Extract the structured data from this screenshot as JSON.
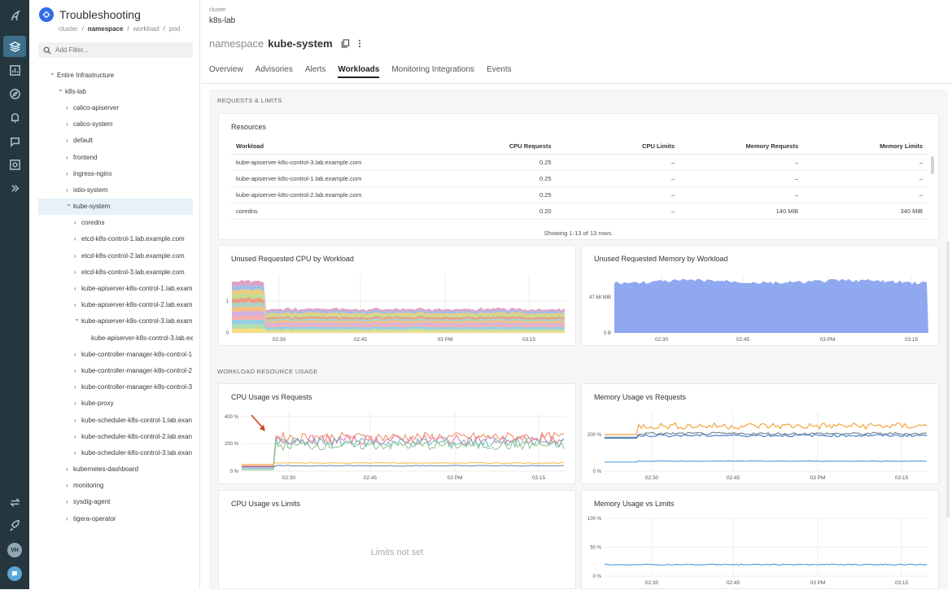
{
  "app": {
    "title": "Troubleshooting"
  },
  "breadcrumb": {
    "cluster": "cluster",
    "namespace": "namespace",
    "workload": "workload",
    "pod": "pod",
    "sep": "/"
  },
  "filter": {
    "placeholder": "Add Filter..."
  },
  "tree": [
    {
      "label": "Entire Infrastructure",
      "level": 0,
      "chevron": "down"
    },
    {
      "label": "k8s-lab",
      "level": 1,
      "chevron": "down"
    },
    {
      "label": "calico-apiserver",
      "level": 2,
      "chevron": "right"
    },
    {
      "label": "calico-system",
      "level": 2,
      "chevron": "right"
    },
    {
      "label": "default",
      "level": 2,
      "chevron": "right"
    },
    {
      "label": "frontend",
      "level": 2,
      "chevron": "right"
    },
    {
      "label": "ingress-nginx",
      "level": 2,
      "chevron": "right"
    },
    {
      "label": "istio-system",
      "level": 2,
      "chevron": "right"
    },
    {
      "label": "kube-system",
      "level": 2,
      "chevron": "down",
      "selected": true
    },
    {
      "label": "coredns",
      "level": 3,
      "chevron": "right"
    },
    {
      "label": "etcd-k8s-control-1.lab.example.com",
      "level": 3,
      "chevron": "right"
    },
    {
      "label": "etcd-k8s-control-2.lab.example.com",
      "level": 3,
      "chevron": "right"
    },
    {
      "label": "etcd-k8s-control-3.lab.example.com",
      "level": 3,
      "chevron": "right"
    },
    {
      "label": "kube-apiserver-k8s-control-1.lab.exam",
      "level": 3,
      "chevron": "right"
    },
    {
      "label": "kube-apiserver-k8s-control-2.lab.exam",
      "level": 3,
      "chevron": "right"
    },
    {
      "label": "kube-apiserver-k8s-control-3.lab.exam",
      "level": 3,
      "chevron": "down"
    },
    {
      "label": "kube-apiserver-k8s-control-3.lab.ex",
      "level": 4,
      "chevron": ""
    },
    {
      "label": "kube-controller-manager-k8s-control-1",
      "level": 3,
      "chevron": "right"
    },
    {
      "label": "kube-controller-manager-k8s-control-2",
      "level": 3,
      "chevron": "right"
    },
    {
      "label": "kube-controller-manager-k8s-control-3",
      "level": 3,
      "chevron": "right"
    },
    {
      "label": "kube-proxy",
      "level": 3,
      "chevron": "right"
    },
    {
      "label": "kube-scheduler-k8s-control-1.lab.exan",
      "level": 3,
      "chevron": "right"
    },
    {
      "label": "kube-scheduler-k8s-control-2.lab.exan",
      "level": 3,
      "chevron": "right"
    },
    {
      "label": "kube-scheduler-k8s-control-3.lab.exan",
      "level": 3,
      "chevron": "right"
    },
    {
      "label": "kubernetes-dashboard",
      "level": 2,
      "chevron": "right"
    },
    {
      "label": "monitoring",
      "level": 2,
      "chevron": "right"
    },
    {
      "label": "sysdig-agent",
      "level": 2,
      "chevron": "right"
    },
    {
      "label": "tigera-operator",
      "level": 2,
      "chevron": "right"
    }
  ],
  "header": {
    "cluster_label": "cluster",
    "cluster_value": "k8s-lab",
    "ns_label": "namespace",
    "ns_value": "kube-system"
  },
  "tabs": [
    "Overview",
    "Advisories",
    "Alerts",
    "Workloads",
    "Monitoring Integrations",
    "Events"
  ],
  "active_tab": "Workloads",
  "sections": {
    "requests": "REQUESTS & LIMITS",
    "usage": "WORKLOAD RESOURCE USAGE"
  },
  "resources": {
    "title": "Resources",
    "columns": [
      "Workload",
      "CPU Requests",
      "CPU Limits",
      "Memory Requests",
      "Memory Limits"
    ],
    "rows": [
      [
        "kube-apiserver-k8s-control-3.lab.example.com",
        "0.25",
        "–",
        "–",
        "–"
      ],
      [
        "kube-apiserver-k8s-control-1.lab.example.com",
        "0.25",
        "–",
        "–",
        "–"
      ],
      [
        "kube-apiserver-k8s-control-2.lab.example.com",
        "0.25",
        "–",
        "–",
        "–"
      ],
      [
        "coredns",
        "0.20",
        "–",
        "140 MiB",
        "340 MiB"
      ]
    ],
    "footer": "Showing 1-13 of 13 rows."
  },
  "charts_titles": {
    "unused_cpu": "Unused Requested CPU by Workload",
    "unused_mem": "Unused Requested Memory by Workload",
    "cpu_req": "CPU Usage vs Requests",
    "mem_req": "Memory Usage vs Requests",
    "cpu_lim": "CPU Usage vs Limits",
    "mem_lim": "Memory Usage vs Limits"
  },
  "cpu_limits_empty": "Limits not set",
  "avatar": "VH",
  "chart_data": [
    {
      "type": "area",
      "title": "Unused Requested CPU by Workload",
      "x_ticks": [
        "02:30",
        "02:45",
        "03 PM",
        "03:15"
      ],
      "y_ticks": [
        "0",
        "1"
      ],
      "stacked": true,
      "approx_total": {
        "before_02_27": 1.7,
        "after": 0.85
      }
    },
    {
      "type": "area",
      "title": "Unused Requested Memory by Workload",
      "x_ticks": [
        "02:30",
        "02:45",
        "03 PM",
        "03:15"
      ],
      "y_ticks": [
        "0 B",
        "47.68 MiB"
      ],
      "color": "#8fa8ef",
      "approx_value_mib": 65
    },
    {
      "type": "line",
      "title": "CPU Usage vs Requests",
      "x_ticks": [
        "02:30",
        "02:45",
        "03 PM",
        "03:15"
      ],
      "y_ticks": [
        "0 %",
        "200 %",
        "400 %"
      ],
      "series_approx_pct": [
        {
          "before": 40,
          "after": 250
        },
        {
          "before": 35,
          "after": 230
        },
        {
          "before": 20,
          "after": 210
        },
        {
          "before": 10,
          "after": 190
        },
        {
          "before": 50,
          "after": 60
        },
        {
          "before": 30,
          "after": 40
        }
      ]
    },
    {
      "type": "line",
      "title": "Memory Usage vs Requests",
      "x_ticks": [
        "02:30",
        "02:45",
        "03 PM",
        "03:15"
      ],
      "y_ticks": [
        "0 %",
        "200 %"
      ],
      "series_approx_pct": [
        {
          "before": 200,
          "after": 240
        },
        {
          "before": 185,
          "after": 205
        },
        {
          "before": 180,
          "after": 195
        },
        {
          "before": 50,
          "after": 55
        }
      ]
    },
    {
      "type": "line",
      "title": "Memory Usage vs Limits",
      "x_ticks": [
        "02:30",
        "02:45",
        "03 PM",
        "03:15"
      ],
      "y_ticks": [
        "0 %",
        "50 %",
        "100 %"
      ],
      "series_approx_pct": [
        {
          "value": 20
        }
      ]
    }
  ],
  "colors": {
    "rail": "#25363f",
    "accent": "#3d6f8a",
    "selected_row": "#e6f1f8",
    "mem_area": "#8fa8ef"
  }
}
